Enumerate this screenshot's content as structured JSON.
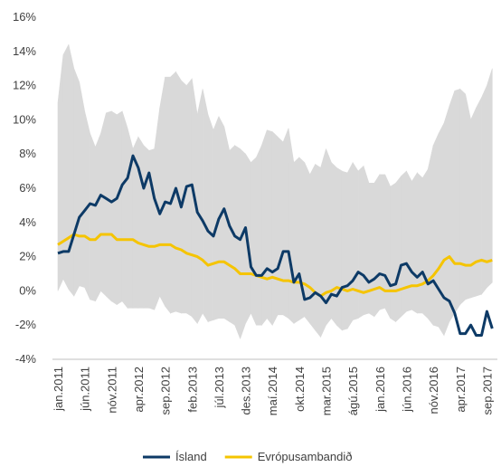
{
  "chart_data": {
    "type": "line",
    "categories": [
      "jan.2011",
      null,
      null,
      null,
      null,
      "jún.2011",
      null,
      null,
      null,
      null,
      "nóv.2011",
      null,
      null,
      null,
      null,
      "apr.2012",
      null,
      null,
      null,
      null,
      "sep.2012",
      null,
      null,
      null,
      null,
      "feb.2013",
      null,
      null,
      null,
      null,
      "júl.2013",
      null,
      null,
      null,
      null,
      "des.2013",
      null,
      null,
      null,
      null,
      "maí.2014",
      null,
      null,
      null,
      null,
      "okt.2014",
      null,
      null,
      null,
      null,
      "mar.2015",
      null,
      null,
      null,
      null,
      "ágú.2015",
      null,
      null,
      null,
      null,
      "jan.2016",
      null,
      null,
      null,
      null,
      "jún.2016",
      null,
      null,
      null,
      null,
      "nóv.2016",
      null,
      null,
      null,
      null,
      "apr.2017",
      null,
      null,
      null,
      null,
      "sep.2017",
      null
    ],
    "series": [
      {
        "name": "Ísland",
        "color": "#0d3a66",
        "values": [
          2.2,
          2.3,
          2.3,
          3.3,
          4.3,
          4.7,
          5.1,
          5.0,
          5.6,
          5.4,
          5.2,
          5.4,
          6.2,
          6.6,
          7.9,
          7.2,
          6.0,
          6.9,
          5.4,
          4.5,
          5.2,
          5.1,
          6.0,
          4.9,
          6.1,
          6.2,
          4.6,
          4.1,
          3.5,
          3.2,
          4.2,
          4.8,
          3.8,
          3.2,
          3.0,
          3.7,
          1.4,
          0.9,
          0.9,
          1.3,
          1.1,
          1.3,
          2.3,
          2.3,
          0.5,
          1.0,
          -0.5,
          -0.4,
          -0.1,
          -0.3,
          -0.7,
          -0.2,
          -0.3,
          0.2,
          0.3,
          0.6,
          1.1,
          0.9,
          0.5,
          0.7,
          1.0,
          0.9,
          0.3,
          0.4,
          1.5,
          1.6,
          1.1,
          0.8,
          1.1,
          0.4,
          0.6,
          0.1,
          -0.4,
          -0.6,
          -1.3,
          -2.5,
          -2.5,
          -2.0,
          -2.6,
          -2.6,
          -1.2,
          -2.2
        ]
      },
      {
        "name": "Evrópusambandið",
        "color": "#f5c400",
        "values": [
          2.7,
          2.9,
          3.1,
          3.3,
          3.2,
          3.2,
          3.0,
          3.0,
          3.3,
          3.3,
          3.3,
          3.0,
          3.0,
          3.0,
          3.0,
          2.8,
          2.7,
          2.6,
          2.6,
          2.7,
          2.7,
          2.7,
          2.5,
          2.4,
          2.2,
          2.1,
          2.0,
          1.8,
          1.5,
          1.6,
          1.7,
          1.7,
          1.5,
          1.3,
          1.0,
          1.0,
          1.0,
          0.9,
          0.8,
          0.7,
          0.8,
          0.7,
          0.6,
          0.6,
          0.5,
          0.5,
          0.4,
          0.2,
          -0.1,
          -0.3,
          -0.1,
          0.0,
          0.2,
          0.1,
          0.0,
          0.1,
          0.0,
          -0.1,
          0.0,
          0.1,
          0.2,
          0.0,
          0.0,
          0.0,
          0.1,
          0.2,
          0.3,
          0.3,
          0.4,
          0.6,
          0.9,
          1.3,
          1.8,
          2.0,
          1.6,
          1.6,
          1.5,
          1.5,
          1.7,
          1.8,
          1.7,
          1.8
        ]
      }
    ],
    "band": {
      "color": "#d9d9d9",
      "upper": [
        11,
        13.8,
        14.4,
        13,
        12.2,
        10.5,
        9.2,
        8.4,
        9.2,
        10.4,
        10.5,
        10.3,
        10.5,
        9.5,
        8.3,
        9,
        8.5,
        8.2,
        8.3,
        10.7,
        12.5,
        12.5,
        12.8,
        12.3,
        12.0,
        12.4,
        10.3,
        11.8,
        10.3,
        9.4,
        10.2,
        9.6,
        8.2,
        8.5,
        8.3,
        8,
        7.5,
        7.8,
        8.5,
        9.4,
        9.3,
        9.0,
        8.7,
        9.5,
        7.5,
        7.8,
        7.5,
        6.8,
        7.4,
        7.2,
        8.3,
        7.5,
        7.2,
        7,
        6.9,
        7.5,
        7,
        7.3,
        6.3,
        6.3,
        6.8,
        6.8,
        6.1,
        6.3,
        6.7,
        7,
        6.4,
        6.9,
        6.6,
        7.1,
        8.5,
        9.2,
        9.8,
        10.8,
        11.7,
        11.8,
        11.5,
        10.0,
        10.7,
        11.3,
        12.0,
        13.0
      ],
      "lower": [
        0,
        0.7,
        0.1,
        -0.3,
        0.3,
        0.2,
        -0.5,
        -0.6,
        0,
        -0.3,
        -0.6,
        -0.8,
        -0.6,
        -1,
        -1,
        -1,
        -1,
        -1,
        -1.1,
        -0.3,
        -0.9,
        -1.3,
        -1.2,
        -1.3,
        -1.3,
        -1.5,
        -1.9,
        -1.3,
        -1.8,
        -1.7,
        -1.6,
        -1.6,
        -1.8,
        -2.0,
        -2.8,
        -1.9,
        -1.3,
        -2,
        -2,
        -1.6,
        -2,
        -1.4,
        -1.4,
        -1.6,
        -1.9,
        -1.7,
        -1.5,
        -1.9,
        -2.3,
        -2.7,
        -2.0,
        -1.6,
        -2,
        -2.3,
        -2.2,
        -1.7,
        -1.6,
        -1.4,
        -1.3,
        -1.5,
        -1.1,
        -1.0,
        -1.6,
        -1.8,
        -1.5,
        -1.2,
        -1.1,
        -1.3,
        -1.3,
        -1.6,
        -2.0,
        -2.1,
        -2.6,
        -1.8,
        -1.3,
        -0.8,
        -0.5,
        -0.4,
        -0.3,
        -0.2,
        0.2,
        0.5
      ]
    },
    "ylim": [
      -4,
      16
    ],
    "yticks": [
      {
        "value": -4,
        "label": "-4%"
      },
      {
        "value": -2,
        "label": "-2%"
      },
      {
        "value": 0,
        "label": "0%"
      },
      {
        "value": 2,
        "label": "2%"
      },
      {
        "value": 4,
        "label": "4%"
      },
      {
        "value": 6,
        "label": "6%"
      },
      {
        "value": 8,
        "label": "8%"
      },
      {
        "value": 10,
        "label": "10%"
      },
      {
        "value": 12,
        "label": "12%"
      },
      {
        "value": 14,
        "label": "14%"
      },
      {
        "value": 16,
        "label": "16%"
      }
    ],
    "grid": false,
    "legend": "bottom"
  }
}
